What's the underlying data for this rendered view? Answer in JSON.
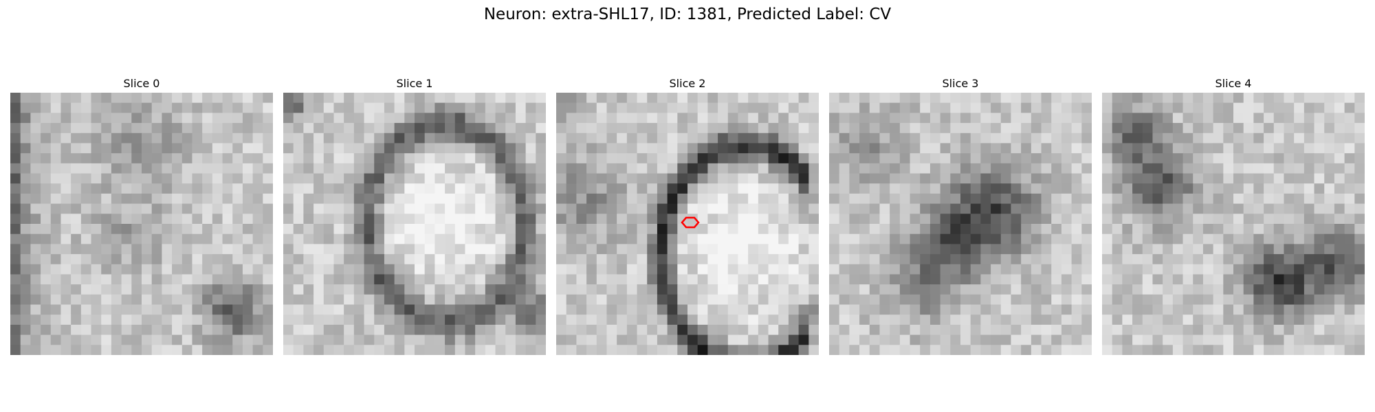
{
  "figure": {
    "title": "Neuron: extra-SHL17, ID: 1381, Predicted Label: CV"
  },
  "panels": [
    {
      "title": "Slice 0",
      "description": "grayscale EM slice, dark band along left edge, dark blob lower right"
    },
    {
      "title": "Slice 1",
      "description": "grayscale EM slice, dark membrane outlining bright rounded region in center-right"
    },
    {
      "title": "Slice 2",
      "description": "grayscale EM slice, dark curved membrane arc with red marker"
    },
    {
      "title": "Slice 3",
      "description": "grayscale EM slice, dark diagonal blob in center"
    },
    {
      "title": "Slice 4",
      "description": "grayscale EM slice, dark blobs upper left and lower right"
    }
  ],
  "marker": {
    "panel": "Slice 2",
    "shape": "hexagon-outline",
    "color": "#ff0000"
  },
  "colors": {
    "background": "#ffffff",
    "marker": "#ff0000"
  }
}
